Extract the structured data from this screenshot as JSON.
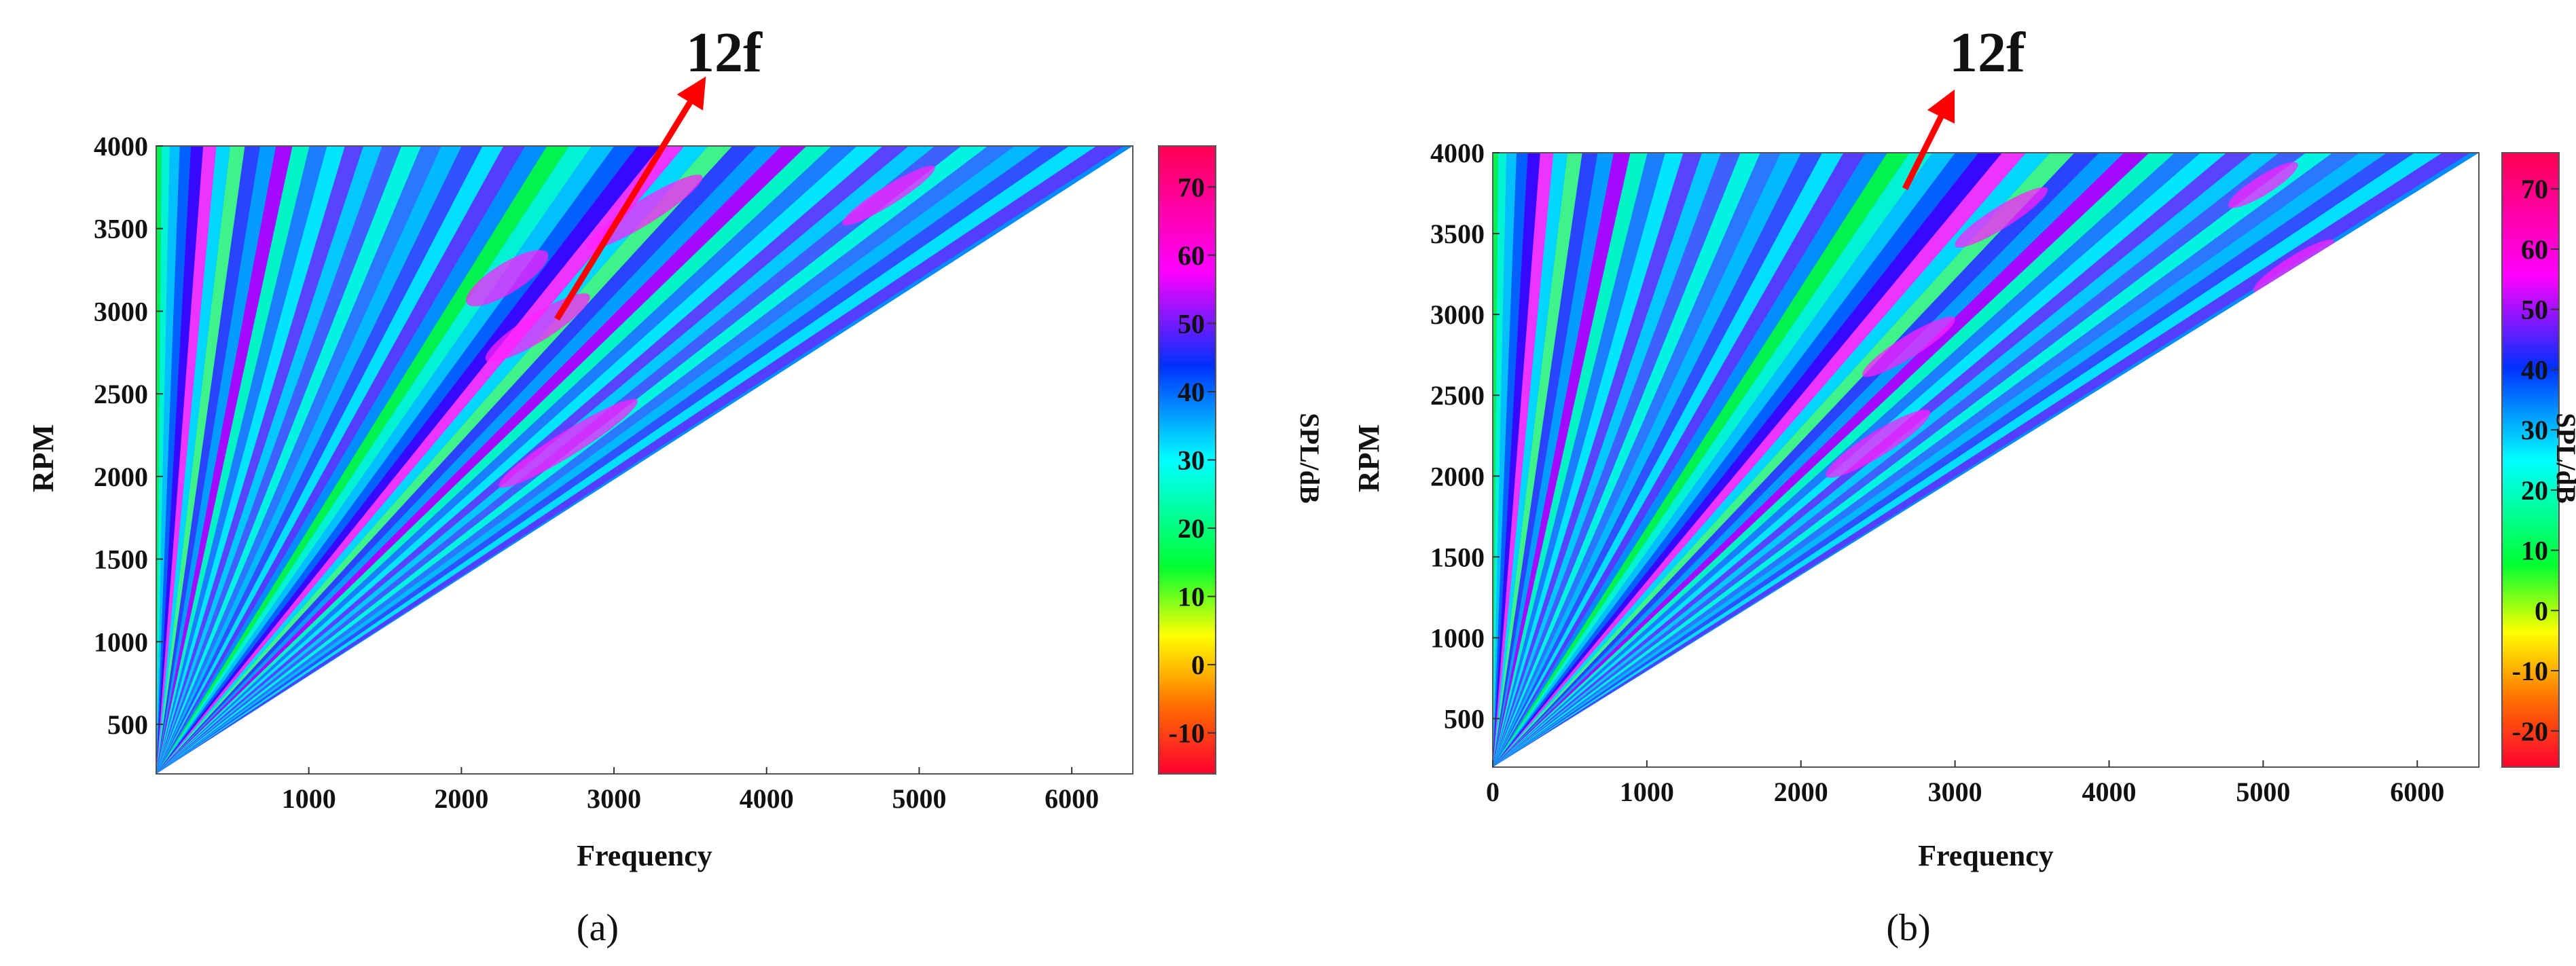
{
  "chart_data": [
    {
      "panel": "(a)",
      "type": "heatmap",
      "xlabel": "Frequency",
      "ylabel": "RPM",
      "colorbar_label": "SPL/dB",
      "xlim": [
        0,
        6400
      ],
      "ylim": [
        200,
        4000
      ],
      "xticks": [
        1000,
        2000,
        3000,
        4000,
        5000,
        6000
      ],
      "yticks": [
        500,
        1000,
        1500,
        2000,
        2500,
        3000,
        3500,
        4000
      ],
      "colorbar_range": [
        -16,
        76
      ],
      "colorbar_ticks": [
        -10,
        0,
        10,
        20,
        30,
        40,
        50,
        60,
        70
      ],
      "annotation": {
        "text": "12f",
        "arrow_from": [
          2350,
          3000
        ],
        "arrow_to": [
          3600,
          4350
        ]
      }
    },
    {
      "panel": "(b)",
      "type": "heatmap",
      "xlabel": "Frequency",
      "ylabel": "RPM",
      "colorbar_label": "SPL/dB",
      "xlim": [
        0,
        6400
      ],
      "ylim": [
        200,
        4000
      ],
      "xticks": [
        0,
        1000,
        2000,
        3000,
        4000,
        5000,
        6000
      ],
      "yticks": [
        500,
        1000,
        1500,
        2000,
        2500,
        3000,
        3500,
        4000
      ],
      "colorbar_range": [
        -26,
        76
      ],
      "colorbar_ticks": [
        -20,
        -10,
        0,
        10,
        20,
        30,
        40,
        50,
        60,
        70
      ],
      "annotation": {
        "text": "12f",
        "arrow_from": [
          3000,
          3750
        ],
        "arrow_to": [
          3350,
          4350
        ]
      }
    }
  ],
  "colors": {
    "colormap": [
      "#ff0040",
      "#ff6a00",
      "#ffff00",
      "#00ff00",
      "#00ffff",
      "#0000ff",
      "#ff00ff",
      "#ff0040"
    ],
    "arrow": "#ff0000"
  }
}
